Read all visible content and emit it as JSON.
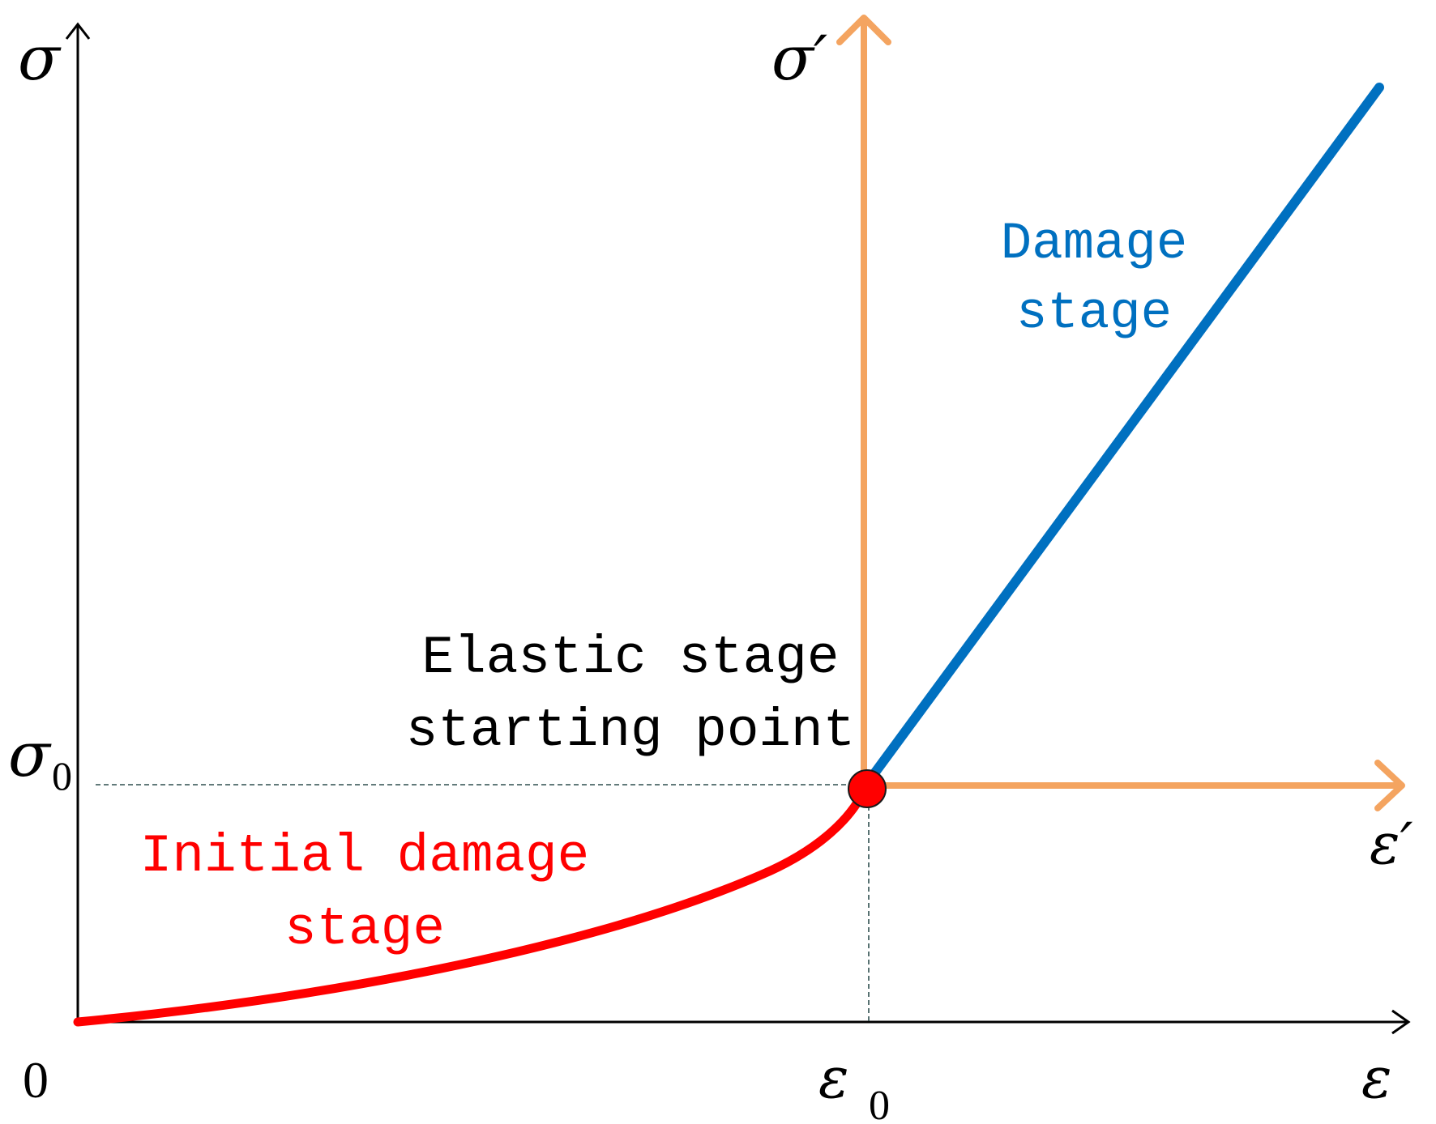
{
  "axes": {
    "main_y": {
      "symbol": "σ"
    },
    "main_x": {
      "symbol": "ε"
    },
    "origin": "0",
    "sigma0": {
      "base": "σ",
      "sub": "0"
    },
    "eps0": {
      "base": "ε",
      "sub": "0"
    },
    "local_y": {
      "symbol": "σ′"
    },
    "local_x": {
      "symbol": "ε′"
    }
  },
  "labels": {
    "initial": {
      "line1": "Initial damage",
      "line2": "stage"
    },
    "elastic": {
      "line1": "Elastic stage",
      "line2": "starting point"
    },
    "damage": {
      "line1": "Damage",
      "line2": "stage"
    }
  },
  "colors": {
    "axis": "#000000",
    "initial_curve": "#ff0000",
    "damage_line": "#0070c0",
    "local_axes": "#f4a460",
    "point": "#ff0000",
    "guide": "#2f4f4f"
  }
}
